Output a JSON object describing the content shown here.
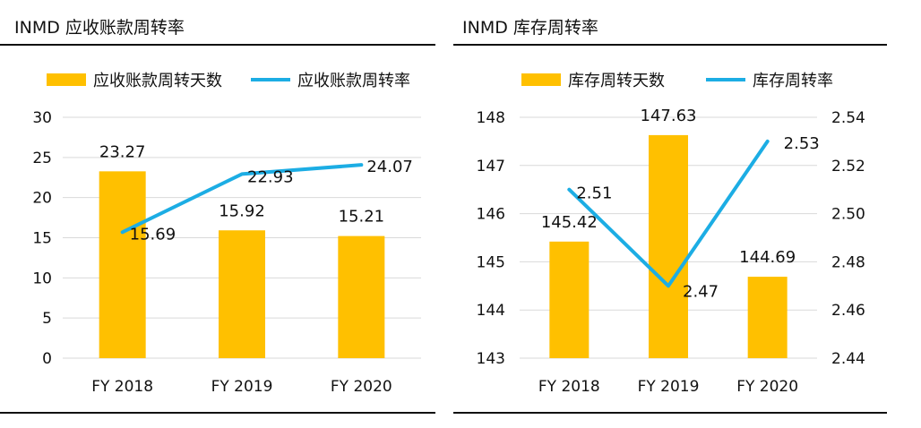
{
  "chart_data": [
    {
      "type": "bar",
      "title": "INMD 应收账款周转率",
      "categories": [
        "FY 2018",
        "FY 2019",
        "FY 2020"
      ],
      "series": [
        {
          "name": "应收账款周转天数",
          "kind": "bar",
          "axis": "left",
          "color": "#FFC000",
          "values": [
            23.27,
            15.92,
            15.21
          ]
        },
        {
          "name": "应收账款周转率",
          "kind": "line",
          "axis": "left",
          "color": "#1CADE4",
          "values": [
            15.69,
            22.93,
            24.07
          ]
        }
      ],
      "y_left": {
        "min": 0,
        "max": 30,
        "ticks": [
          "0",
          "5",
          "10",
          "15",
          "20",
          "25",
          "30"
        ]
      },
      "grid": true,
      "legend": "top"
    },
    {
      "type": "bar",
      "title": "INMD 库存周转率",
      "categories": [
        "FY 2018",
        "FY 2019",
        "FY 2020"
      ],
      "series": [
        {
          "name": "库存周转天数",
          "kind": "bar",
          "axis": "left",
          "color": "#FFC000",
          "values": [
            145.42,
            147.63,
            144.69
          ]
        },
        {
          "name": "库存周转率",
          "kind": "line",
          "axis": "right",
          "color": "#1CADE4",
          "values": [
            2.51,
            2.47,
            2.53
          ]
        }
      ],
      "y_left": {
        "min": 143,
        "max": 148,
        "ticks": [
          "143",
          "144",
          "145",
          "146",
          "147",
          "148"
        ]
      },
      "y_right": {
        "min": 2.44,
        "max": 2.54,
        "ticks": [
          "2.44",
          "2.46",
          "2.48",
          "2.50",
          "2.52",
          "2.54"
        ]
      },
      "grid": true,
      "legend": "top"
    }
  ]
}
